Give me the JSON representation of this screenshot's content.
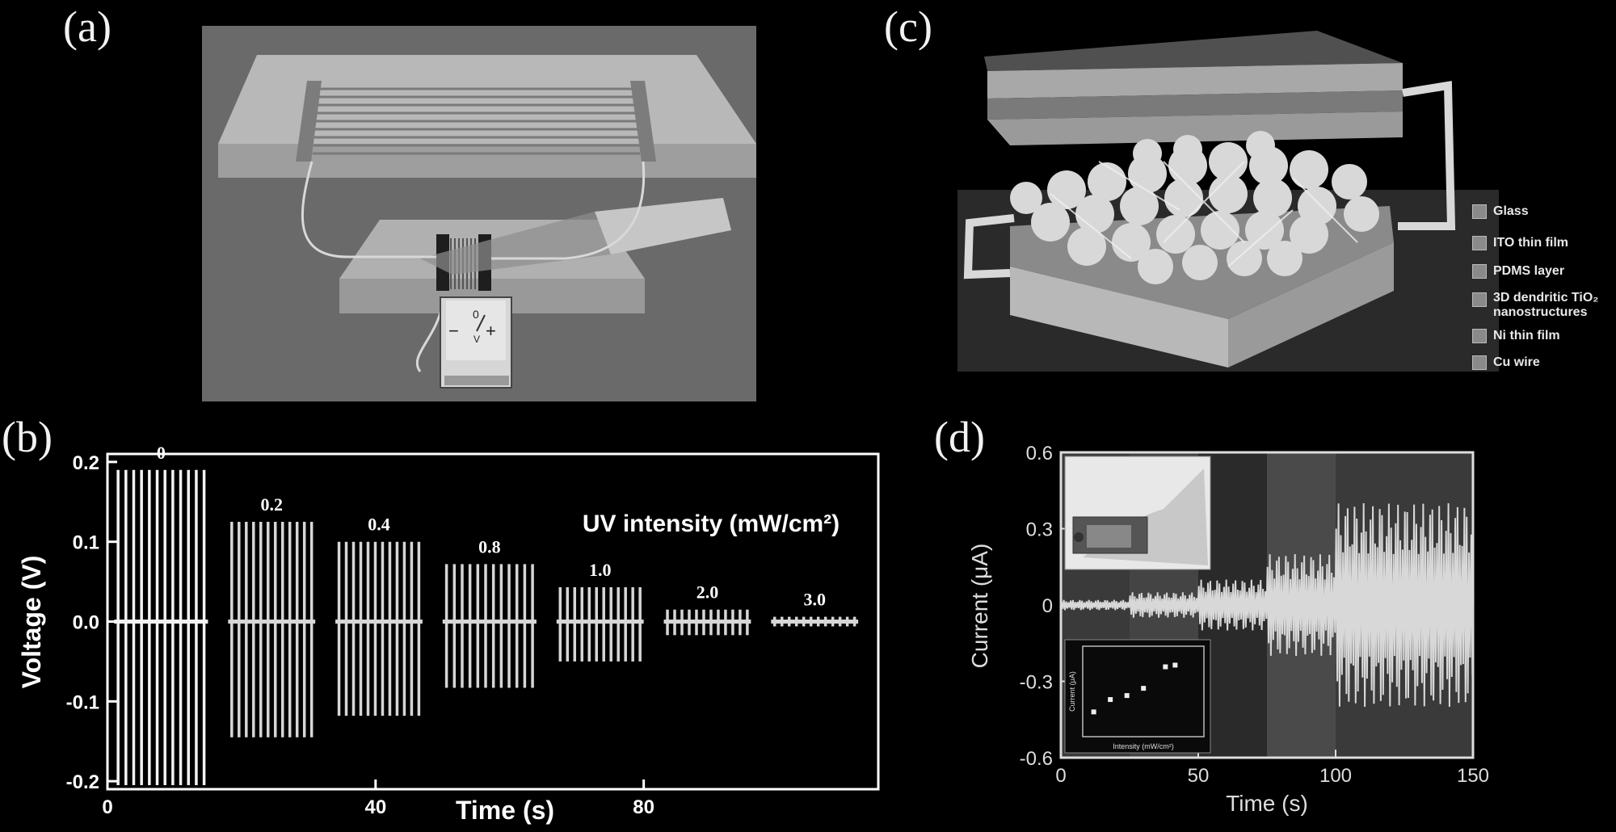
{
  "panels": {
    "a": {
      "letter": "(a)",
      "device_symbol": {
        "minus": "−",
        "zero": "0",
        "v": "V",
        "plus": "+"
      }
    },
    "b": {
      "letter": "(b)"
    },
    "c": {
      "letter": "(c)",
      "legend": [
        {
          "label": "Glass"
        },
        {
          "label": "ITO thin film"
        },
        {
          "label": "PDMS layer"
        },
        {
          "label": "3D dendritic TiO₂ nanostructures"
        },
        {
          "label": "Ni thin film"
        },
        {
          "label": "Cu wire"
        }
      ]
    },
    "d": {
      "letter": "(d)"
    }
  },
  "chart_data": [
    {
      "type": "line",
      "panel": "b",
      "ylabel": "Voltage (V)",
      "xlabel": "Time (s)",
      "annotation": "UV intensity (mW/cm²)",
      "ylim": [
        -0.21,
        0.21
      ],
      "xlim": [
        0,
        115
      ],
      "yticks": [
        "0.2",
        "0.1",
        "0.0",
        "-0.1",
        "-0.2"
      ],
      "ytick_values": [
        0.2,
        0.1,
        0.0,
        -0.1,
        -0.2
      ],
      "xticks": [
        "0",
        "40",
        "80"
      ],
      "xtick_values": [
        0,
        40,
        80
      ],
      "series": [
        {
          "name": "0",
          "t_start": 1,
          "t_end": 15,
          "peaks": 12,
          "pos": 0.19,
          "neg": -0.205,
          "color": "#f2f2f2"
        },
        {
          "name": "0.2",
          "t_start": 18,
          "t_end": 31,
          "peaks": 12,
          "pos": 0.125,
          "neg": -0.145,
          "color": "#d6d6d6"
        },
        {
          "name": "0.4",
          "t_start": 34,
          "t_end": 47,
          "peaks": 12,
          "pos": 0.1,
          "neg": -0.118,
          "color": "#d6d6d6"
        },
        {
          "name": "0.8",
          "t_start": 50,
          "t_end": 64,
          "peaks": 12,
          "pos": 0.072,
          "neg": -0.083,
          "color": "#d6d6d6"
        },
        {
          "name": "1.0",
          "t_start": 67,
          "t_end": 80,
          "peaks": 12,
          "pos": 0.043,
          "neg": -0.05,
          "color": "#d6d6d6"
        },
        {
          "name": "2.0",
          "t_start": 83,
          "t_end": 96,
          "peaks": 12,
          "pos": 0.015,
          "neg": -0.017,
          "color": "#d6d6d6"
        },
        {
          "name": "3.0",
          "t_start": 99,
          "t_end": 112,
          "peaks": 12,
          "pos": 0.006,
          "neg": -0.006,
          "color": "#d6d6d6"
        }
      ]
    },
    {
      "type": "line",
      "panel": "d",
      "ylabel": "Current (μA)",
      "xlabel": "Time (s)",
      "ylim": [
        -0.6,
        0.6
      ],
      "xlim": [
        0,
        150
      ],
      "yticks": [
        "0.6",
        "0.3",
        "0",
        "-0.3",
        "-0.6"
      ],
      "ytick_values": [
        0.6,
        0.3,
        0,
        -0.3,
        -0.6
      ],
      "xticks": [
        "0",
        "50",
        "100",
        "150"
      ],
      "xtick_values": [
        0,
        50,
        100,
        150
      ],
      "segments": [
        {
          "t_start": 0,
          "t_end": 25,
          "amp": 0.02
        },
        {
          "t_start": 25,
          "t_end": 50,
          "amp": 0.05
        },
        {
          "t_start": 50,
          "t_end": 75,
          "amp": 0.1
        },
        {
          "t_start": 75,
          "t_end": 100,
          "amp": 0.2
        },
        {
          "t_start": 100,
          "t_end": 150,
          "amp": 0.4
        }
      ],
      "inset": {
        "type": "scatter",
        "xlabel": "Intensity (mW/cm²)",
        "ylabel": "Current (μA)",
        "log_x": true,
        "log_y": true,
        "x": [
          0.1,
          0.2,
          0.4,
          0.8,
          2.0,
          3.0
        ],
        "y": [
          0.04,
          0.08,
          0.1,
          0.15,
          0.5,
          0.55
        ]
      }
    }
  ]
}
